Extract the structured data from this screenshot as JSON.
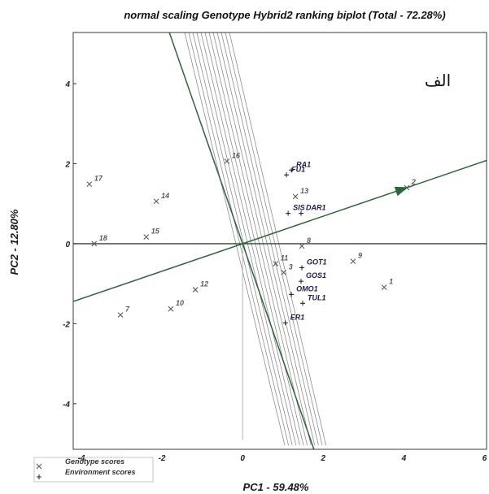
{
  "panel_label": "الف",
  "chart_data": {
    "type": "scatter",
    "title": "normal scaling Genotype Hybrid2 ranking biplot (Total - 72.28%)",
    "xlabel": "PC1 - 59.48%",
    "ylabel": "PC2 - 12.80%",
    "xlim": [
      -4.2,
      6.05
    ],
    "ylim": [
      -5.14,
      5.28
    ],
    "xticks": [
      -4,
      -2,
      0,
      2,
      4,
      6
    ],
    "yticks": [
      4,
      2,
      0,
      -2,
      -4
    ],
    "grid": false,
    "legend_position": "bottom-left",
    "aec_color": "#2e6638",
    "series": [
      {
        "name": "Genotype scores",
        "marker": "x",
        "color": "#5c5c5c",
        "points": [
          {
            "label": "1",
            "x": 3.51,
            "y": -1.09
          },
          {
            "label": "2",
            "x": 4.07,
            "y": 1.4,
            "ranking_target": true
          },
          {
            "label": "3",
            "x": 1.02,
            "y": -0.72
          },
          {
            "label": "7",
            "x": -3.03,
            "y": -1.78
          },
          {
            "label": "8",
            "x": 1.47,
            "y": -0.06
          },
          {
            "label": "9",
            "x": 2.74,
            "y": -0.44
          },
          {
            "label": "10",
            "x": -1.78,
            "y": -1.63
          },
          {
            "label": "11",
            "x": 0.82,
            "y": -0.5
          },
          {
            "label": "12",
            "x": -1.17,
            "y": -1.15
          },
          {
            "label": "13",
            "x": 1.31,
            "y": 1.18
          },
          {
            "label": "14",
            "x": -2.14,
            "y": 1.06
          },
          {
            "label": "15",
            "x": -2.39,
            "y": 0.17
          },
          {
            "label": "16",
            "x": -0.39,
            "y": 2.06
          },
          {
            "label": "17",
            "x": -3.8,
            "y": 1.49
          },
          {
            "label": "18",
            "x": -3.68,
            "y": 0.0
          }
        ]
      },
      {
        "name": "Environment scores",
        "marker": "+",
        "color": "#2a2a3a",
        "points": [
          {
            "label": "RA1",
            "x": 1.21,
            "y": 1.84
          },
          {
            "label": "FU1",
            "x": 1.09,
            "y": 1.72
          },
          {
            "label": "SIS",
            "x": 1.13,
            "y": 0.76
          },
          {
            "label": "DAR1",
            "x": 1.45,
            "y": 0.76
          },
          {
            "label": "GOT1",
            "x": 1.47,
            "y": -0.6
          },
          {
            "label": "GOS1",
            "x": 1.45,
            "y": -0.94
          },
          {
            "label": "OMO1",
            "x": 1.21,
            "y": -1.27
          },
          {
            "label": "TUL1",
            "x": 1.49,
            "y": -1.49
          },
          {
            "label": "ER1",
            "x": 1.06,
            "y": -1.98
          }
        ]
      }
    ]
  }
}
